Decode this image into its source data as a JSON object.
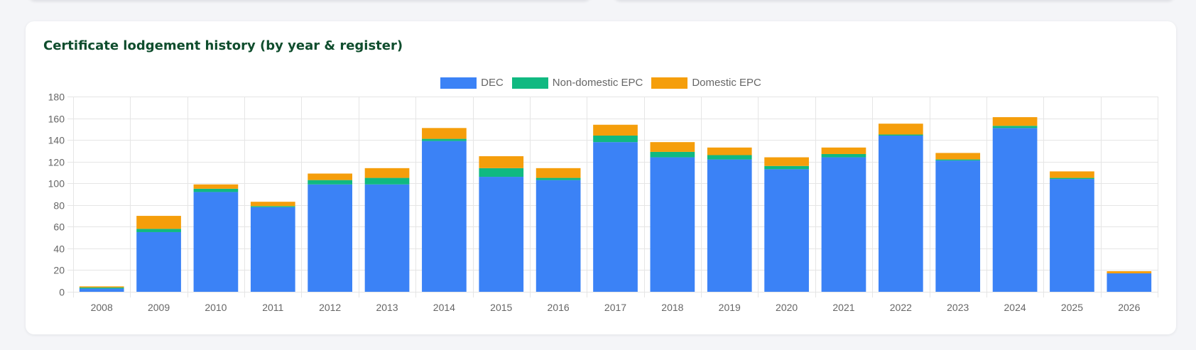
{
  "card": {
    "title": "Certificate lodgement history (by year & register)"
  },
  "colors": {
    "DEC": "#3b82f6",
    "Non-domestic EPC": "#10b981",
    "Domestic EPC": "#f59e0b",
    "grid": "#e5e5e5",
    "tick_text": "#666666",
    "title": "#0f4d2d"
  },
  "legend": [
    {
      "label": "DEC",
      "color": "#3b82f6"
    },
    {
      "label": "Non-domestic EPC",
      "color": "#10b981"
    },
    {
      "label": "Domestic EPC",
      "color": "#f59e0b"
    }
  ],
  "chart_data": {
    "type": "bar",
    "stacked": true,
    "title": "Certificate lodgement history (by year & register)",
    "xlabel": "",
    "ylabel": "",
    "ylim": [
      0,
      180
    ],
    "yticks": [
      0,
      20,
      40,
      60,
      80,
      100,
      120,
      140,
      160,
      180
    ],
    "grid": true,
    "legend_position": "top-center",
    "categories": [
      "2008",
      "2009",
      "2010",
      "2011",
      "2012",
      "2013",
      "2014",
      "2015",
      "2016",
      "2017",
      "2018",
      "2019",
      "2020",
      "2021",
      "2022",
      "2023",
      "2024",
      "2025",
      "2026"
    ],
    "series": [
      {
        "name": "DEC",
        "color": "#3b82f6",
        "values": [
          3,
          55,
          92,
          78,
          99,
          99,
          139,
          106,
          103,
          138,
          124,
          122,
          113,
          124,
          144,
          121,
          151,
          104,
          17
        ]
      },
      {
        "name": "Non-domestic EPC",
        "color": "#10b981",
        "values": [
          1,
          3,
          3,
          1,
          4,
          6,
          2,
          8,
          2,
          6,
          5,
          4,
          3,
          3,
          1,
          1,
          2,
          1,
          0
        ]
      },
      {
        "name": "Domestic EPC",
        "color": "#f59e0b",
        "values": [
          1,
          12,
          4,
          4,
          6,
          9,
          10,
          11,
          9,
          10,
          9,
          7,
          8,
          6,
          10,
          6,
          8,
          6,
          2
        ]
      }
    ]
  }
}
